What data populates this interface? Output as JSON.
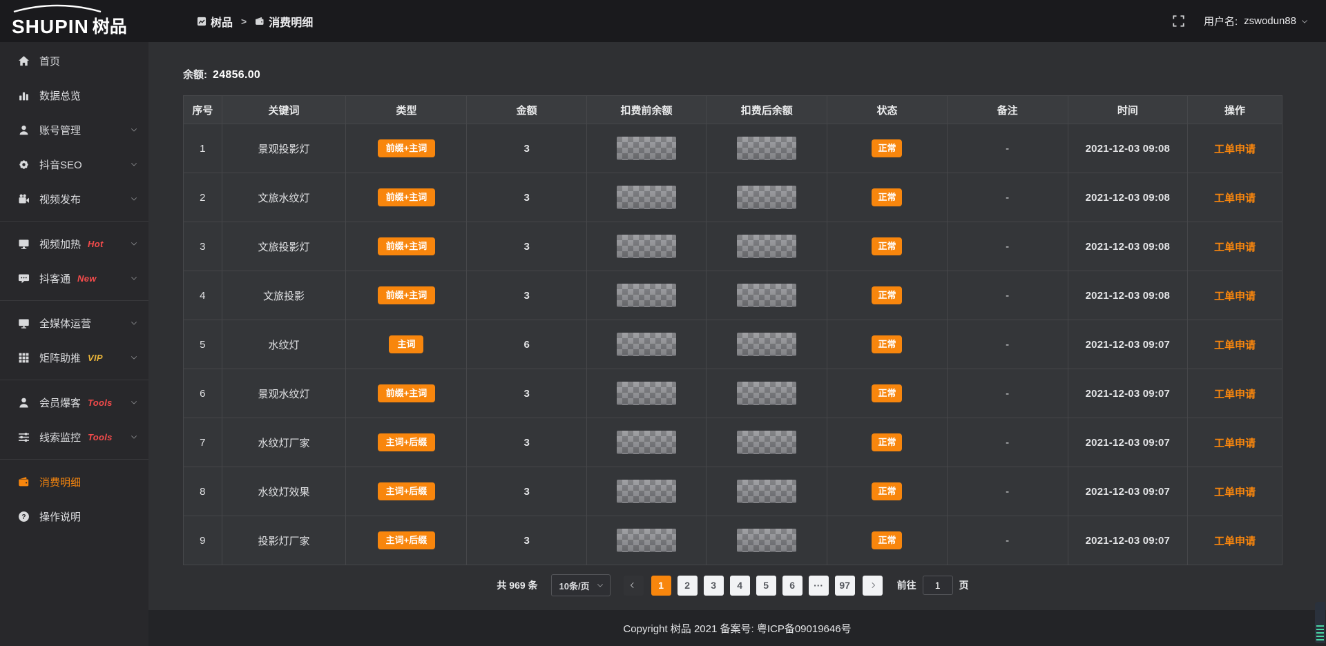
{
  "colors": {
    "accent": "#f8860d",
    "tag_red": "#f34b4b",
    "tag_gold": "#e8b339",
    "status_badge": "#f8860d"
  },
  "brand": {
    "logo_en": "SHUPIN",
    "logo_cn": "树品"
  },
  "topbar": {
    "breadcrumb": [
      {
        "label": "树品",
        "icon": "panel-icon"
      },
      {
        "label": "消费明细",
        "icon": "wallet-icon"
      }
    ],
    "separator": ">",
    "username_label": "用户名:",
    "username": "zswodun88"
  },
  "sidebar": {
    "items": [
      {
        "key": "home",
        "label": "首页",
        "icon": "home-icon"
      },
      {
        "key": "data-overview",
        "label": "数据总览",
        "icon": "bar-chart-icon"
      },
      {
        "key": "account-management",
        "label": "账号管理",
        "icon": "user-icon",
        "chevron": true
      },
      {
        "key": "douyin-seo",
        "label": "抖音SEO",
        "icon": "gear-icon",
        "chevron": true
      },
      {
        "key": "video-publish",
        "label": "视频发布",
        "icon": "video-camera-icon",
        "chevron": true,
        "divider_after": true
      },
      {
        "key": "video-heating",
        "label": "视频加热",
        "icon": "screen-icon",
        "tag": "Hot",
        "tag_color": "red",
        "chevron": true
      },
      {
        "key": "douketong",
        "label": "抖客通",
        "icon": "chat-icon",
        "tag": "New",
        "tag_color": "red",
        "chevron": true,
        "divider_after": true
      },
      {
        "key": "omni-media",
        "label": "全媒体运营",
        "icon": "monitor-icon",
        "chevron": true
      },
      {
        "key": "matrix-boost",
        "label": "矩阵助推",
        "icon": "grid-icon",
        "tag": "VIP",
        "tag_color": "gold",
        "chevron": true,
        "divider_after": true
      },
      {
        "key": "member-burst",
        "label": "会员爆客",
        "icon": "user-solid-icon",
        "tag": "Tools",
        "tag_color": "red",
        "chevron": true
      },
      {
        "key": "lead-monitor",
        "label": "线索监控",
        "icon": "sliders-icon",
        "tag": "Tools",
        "tag_color": "red",
        "chevron": true,
        "divider_after": true
      },
      {
        "key": "consumption-detail",
        "label": "消费明细",
        "icon": "wallet-icon",
        "active": true
      },
      {
        "key": "operation-guide",
        "label": "操作说明",
        "icon": "question-icon"
      }
    ]
  },
  "balance": {
    "label": "余额:",
    "value": "24856.00"
  },
  "table": {
    "headers": [
      "序号",
      "关键词",
      "类型",
      "金额",
      "扣费前余额",
      "扣费后余额",
      "状态",
      "备注",
      "时间",
      "操作"
    ],
    "redacted_columns": [
      "扣费前余额",
      "扣费后余额"
    ],
    "rows": [
      {
        "no": "1",
        "keyword": "景观投影灯",
        "type": "前缀+主词",
        "amount": "3",
        "status": "正常",
        "remark": "-",
        "time": "2021-12-03 09:08",
        "action": "工单申请"
      },
      {
        "no": "2",
        "keyword": "文旅水纹灯",
        "type": "前缀+主词",
        "amount": "3",
        "status": "正常",
        "remark": "-",
        "time": "2021-12-03 09:08",
        "action": "工单申请"
      },
      {
        "no": "3",
        "keyword": "文旅投影灯",
        "type": "前缀+主词",
        "amount": "3",
        "status": "正常",
        "remark": "-",
        "time": "2021-12-03 09:08",
        "action": "工单申请"
      },
      {
        "no": "4",
        "keyword": "文旅投影",
        "type": "前缀+主词",
        "amount": "3",
        "status": "正常",
        "remark": "-",
        "time": "2021-12-03 09:08",
        "action": "工单申请"
      },
      {
        "no": "5",
        "keyword": "水纹灯",
        "type": "主词",
        "amount": "6",
        "status": "正常",
        "remark": "-",
        "time": "2021-12-03 09:07",
        "action": "工单申请"
      },
      {
        "no": "6",
        "keyword": "景观水纹灯",
        "type": "前缀+主词",
        "amount": "3",
        "status": "正常",
        "remark": "-",
        "time": "2021-12-03 09:07",
        "action": "工单申请"
      },
      {
        "no": "7",
        "keyword": "水纹灯厂家",
        "type": "主词+后缀",
        "amount": "3",
        "status": "正常",
        "remark": "-",
        "time": "2021-12-03 09:07",
        "action": "工单申请"
      },
      {
        "no": "8",
        "keyword": "水纹灯效果",
        "type": "主词+后缀",
        "amount": "3",
        "status": "正常",
        "remark": "-",
        "time": "2021-12-03 09:07",
        "action": "工单申请"
      },
      {
        "no": "9",
        "keyword": "投影灯厂家",
        "type": "主词+后缀",
        "amount": "3",
        "status": "正常",
        "remark": "-",
        "time": "2021-12-03 09:07",
        "action": "工单申请"
      }
    ]
  },
  "pagination": {
    "total_label": "共 969 条",
    "page_size": "10条/页",
    "pages": [
      "1",
      "2",
      "3",
      "4",
      "5",
      "6",
      "···",
      "97"
    ],
    "active_page": "1",
    "goto_label": "前往",
    "goto_value": "1",
    "goto_suffix": "页"
  },
  "footer": {
    "copyright": "Copyright 树品 2021 备案号: 粤ICP备09019646号"
  }
}
